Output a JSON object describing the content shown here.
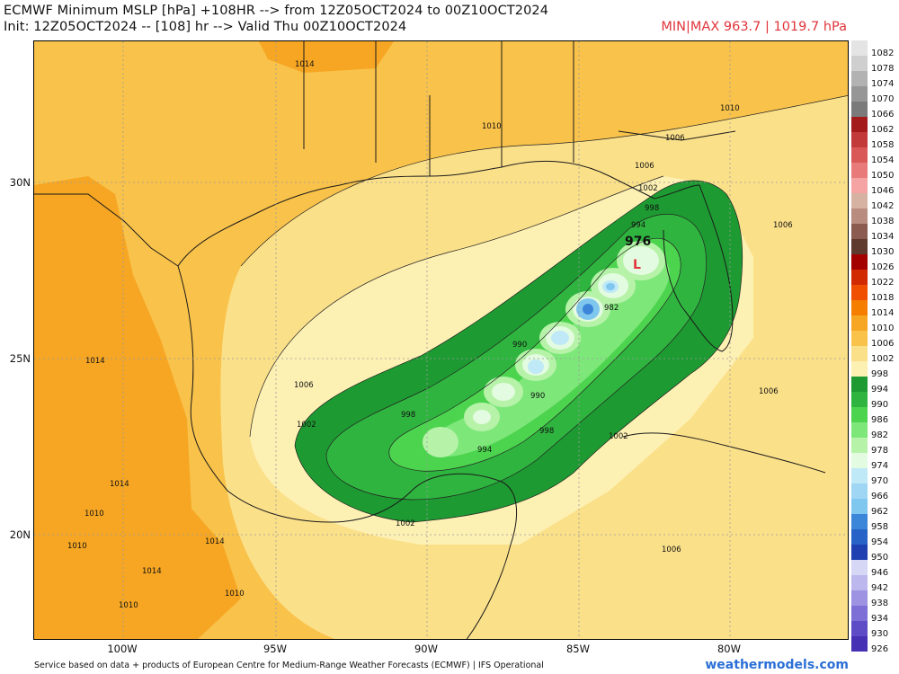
{
  "header": {
    "title_line1": "ECMWF Minimum MSLP [hPa] +108HR --> from 12Z05OCT2024 to 00Z10OCT2024",
    "title_line2": "Init: 12Z05OCT2024 -- [108] hr --> Valid Thu 00Z10OCT2024",
    "minmax": "MIN|MAX 963.7 | 1019.7 hPa"
  },
  "axes": {
    "lat_ticks": [
      "30N",
      "25N",
      "20N"
    ],
    "lon_ticks": [
      "100W",
      "95W",
      "90W",
      "85W",
      "80W"
    ]
  },
  "map": {
    "storm_label": "976",
    "low_marker": "L",
    "contour_labels": [
      "1014",
      "1010",
      "1006",
      "1002",
      "998",
      "994",
      "990",
      "982",
      "1006",
      "1002",
      "998",
      "994",
      "990",
      "1014",
      "1010",
      "1014",
      "1010",
      "1014",
      "1010",
      "1014",
      "1010",
      "1006",
      "1006",
      "1006",
      "1002",
      "998",
      "1002",
      "1006",
      "1010"
    ],
    "colors": {
      "land_outline": "#1a1a1a",
      "p1014": "#f6a623",
      "p1010": "#f9c24a",
      "p1006": "#fbe08a",
      "p1002": "#fdf0b3",
      "p998": "#1e9a32",
      "p994": "#2fb53f",
      "p990": "#4dd44f",
      "p986": "#7ee77a",
      "p982": "#b6f3a9",
      "p978": "#e3fbe0",
      "p974": "#bfe9f7",
      "p970": "#7fc7ee",
      "p966": "#3b86d8"
    }
  },
  "colorbar": {
    "labels": [
      "1082",
      "1078",
      "1074",
      "1070",
      "1066",
      "1062",
      "1058",
      "1054",
      "1050",
      "1046",
      "1042",
      "1038",
      "1034",
      "1030",
      "1026",
      "1022",
      "1018",
      "1014",
      "1010",
      "1006",
      "1002",
      "998",
      "994",
      "990",
      "986",
      "982",
      "978",
      "974",
      "970",
      "966",
      "962",
      "958",
      "954",
      "950",
      "946",
      "942",
      "938",
      "934",
      "930",
      "926"
    ],
    "colors": [
      "#e4e4e4",
      "#cfcfcf",
      "#b2b2b2",
      "#969696",
      "#7a7a7a",
      "#a31b1b",
      "#c33a3a",
      "#d95858",
      "#e87a7a",
      "#f6a3a3",
      "#d6b2a3",
      "#b98c80",
      "#8a5b4e",
      "#5e3a2e",
      "#a30000",
      "#d12a00",
      "#f04e00",
      "#f57e00",
      "#f6a623",
      "#f9c24a",
      "#fbe08a",
      "#fdf0b3",
      "#1e9a32",
      "#2fb53f",
      "#4dd44f",
      "#7ee77a",
      "#b6f3a9",
      "#e3fbe0",
      "#bfe9f7",
      "#9fd6f3",
      "#7fc7ee",
      "#3b86d8",
      "#2863c8",
      "#1e40b0",
      "#d6d6f5",
      "#bcb8ee",
      "#9d93e2",
      "#7d6fd6",
      "#5e4cc7",
      "#4631b4"
    ]
  },
  "footer": {
    "source": "Service based on data + products of European Centre for Medium-Range Weather Forecasts (ECMWF) | IFS Operational",
    "brand": "weathermodels.com"
  }
}
